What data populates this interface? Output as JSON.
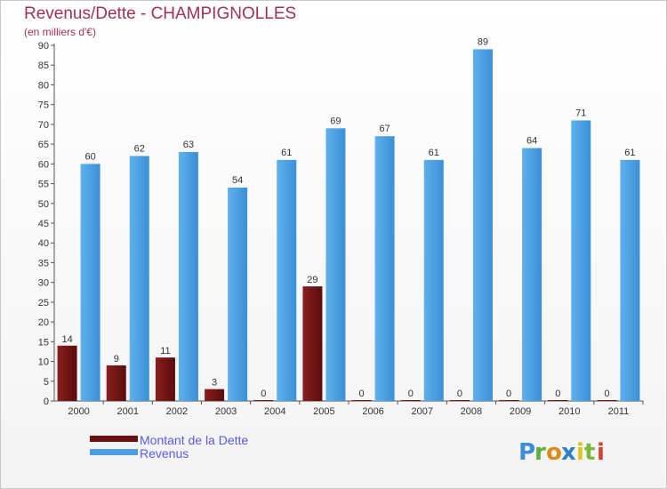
{
  "title": "Revenus/Dette - CHAMPIGNOLLES",
  "subtitle": "(en milliers d'€)",
  "logo_text": "Proxiti",
  "chart_data": {
    "type": "bar",
    "title": "Revenus/Dette - CHAMPIGNOLLES",
    "ylabel": "(en milliers d'€)",
    "xlabel": "",
    "ylim": [
      0,
      90
    ],
    "yticks": [
      0,
      5,
      10,
      15,
      20,
      25,
      30,
      35,
      40,
      45,
      50,
      55,
      60,
      65,
      70,
      75,
      80,
      85,
      90
    ],
    "grid": false,
    "legend_position": "bottom-left",
    "categories": [
      "2000",
      "2001",
      "2002",
      "2003",
      "2004",
      "2005",
      "2006",
      "2007",
      "2008",
      "2009",
      "2010",
      "2011"
    ],
    "series": [
      {
        "name": "Montant de la Dette",
        "color": "#7a1616",
        "values": [
          14,
          9,
          11,
          3,
          0,
          29,
          0,
          0,
          0,
          0,
          0,
          0
        ]
      },
      {
        "name": "Revenus",
        "color": "#4a9fe0",
        "values": [
          60,
          62,
          63,
          54,
          61,
          69,
          67,
          61,
          89,
          64,
          71,
          61
        ]
      }
    ]
  }
}
